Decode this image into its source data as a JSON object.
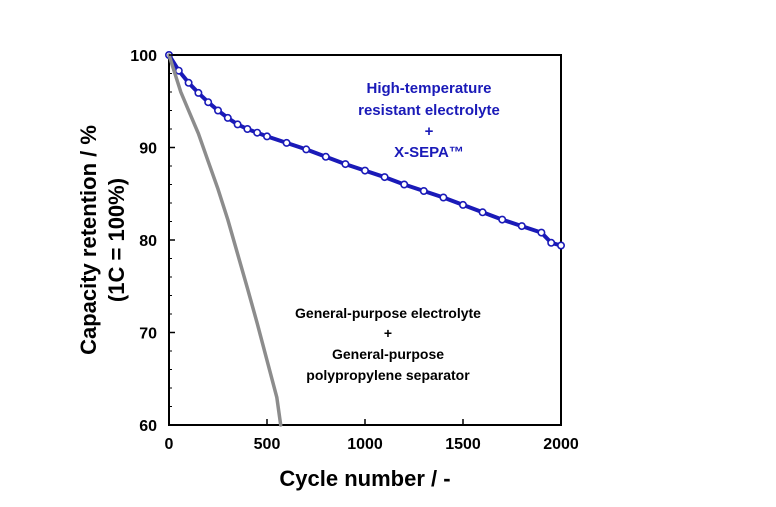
{
  "chart_data": {
    "type": "line",
    "xlabel": "Cycle number / -",
    "ylabel_line1": "Capacity retention / %",
    "ylabel_line2": "(1C = 100%)",
    "xlim": [
      0,
      2000
    ],
    "ylim": [
      60,
      100
    ],
    "x_ticks": [
      0,
      500,
      1000,
      1500,
      2000
    ],
    "y_ticks": [
      60,
      70,
      80,
      90,
      100
    ],
    "x_tick_labels": [
      "0",
      "500",
      "1000",
      "1500",
      "2000"
    ],
    "y_tick_labels": [
      "60",
      "70",
      "80",
      "90",
      "100"
    ],
    "grid": false,
    "series": [
      {
        "color": "#1a1ab8",
        "markers": true,
        "x": [
          0,
          50,
          100,
          150,
          200,
          250,
          300,
          350,
          400,
          450,
          500,
          600,
          700,
          800,
          900,
          1000,
          1100,
          1200,
          1300,
          1400,
          1500,
          1600,
          1700,
          1800,
          1900,
          1950,
          2000
        ],
        "y": [
          100,
          98.3,
          97.0,
          95.9,
          94.9,
          94.0,
          93.2,
          92.5,
          92.0,
          91.6,
          91.2,
          90.5,
          89.8,
          89.0,
          88.2,
          87.5,
          86.8,
          86.0,
          85.3,
          84.6,
          83.8,
          83.0,
          82.2,
          81.5,
          80.8,
          79.7,
          79.4
        ]
      },
      {
        "color": "#8c8c8c",
        "markers": false,
        "x": [
          0,
          30,
          60,
          100,
          150,
          200,
          250,
          300,
          350,
          400,
          450,
          500,
          550,
          570
        ],
        "y": [
          100,
          98.0,
          96.0,
          94.0,
          91.5,
          88.5,
          85.5,
          82.2,
          78.5,
          74.8,
          71.0,
          67.0,
          63.0,
          60.0
        ]
      }
    ],
    "annotations": {
      "blue": [
        "High-temperature",
        "resistant electrolyte",
        "+",
        "X-SEPA™"
      ],
      "black": [
        "General-purpose electrolyte",
        "+",
        "General-purpose",
        "polypropylene separator"
      ]
    }
  }
}
